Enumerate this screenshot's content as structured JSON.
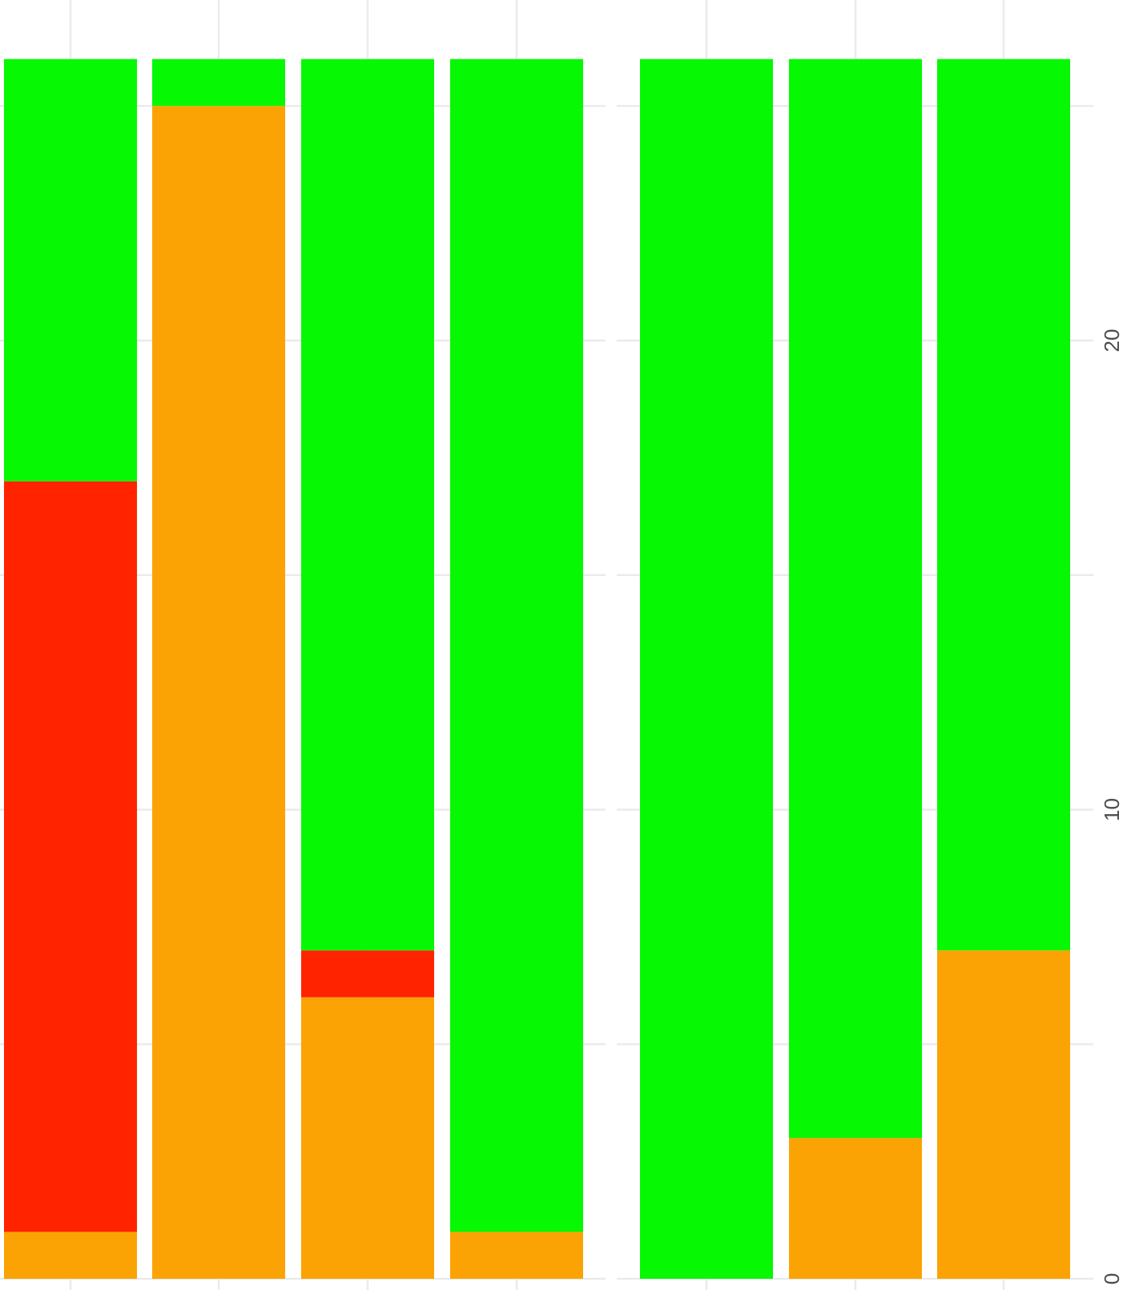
{
  "chart_data": {
    "type": "bar",
    "stacked": true,
    "orientation": "vertical",
    "panels": 2,
    "grid": true,
    "legend": "none",
    "x_tick_labels": [],
    "y_axis": {
      "position": "right",
      "ylim": [
        0,
        26
      ],
      "major_ticks": [
        0,
        10,
        20
      ],
      "minor_ticks": [
        5,
        15,
        25
      ],
      "tick_labels": [
        "0",
        "10",
        "20"
      ],
      "tick_label_rotation": -90
    },
    "colors": {
      "orange": "#FBA304",
      "red": "#FF2300",
      "green": "#07F803",
      "grid": "#EBEBEB"
    },
    "bars": [
      {
        "panel": 1,
        "segments": [
          {
            "color": "orange",
            "value": 1
          },
          {
            "color": "red",
            "value": 16
          },
          {
            "color": "green",
            "value": 9
          }
        ]
      },
      {
        "panel": 1,
        "segments": [
          {
            "color": "orange",
            "value": 25
          },
          {
            "color": "green",
            "value": 1
          }
        ]
      },
      {
        "panel": 1,
        "segments": [
          {
            "color": "orange",
            "value": 6
          },
          {
            "color": "red",
            "value": 1
          },
          {
            "color": "green",
            "value": 19
          }
        ]
      },
      {
        "panel": 1,
        "segments": [
          {
            "color": "orange",
            "value": 1
          },
          {
            "color": "green",
            "value": 25
          }
        ]
      },
      {
        "panel": 2,
        "segments": [
          {
            "color": "green",
            "value": 26
          }
        ]
      },
      {
        "panel": 2,
        "segments": [
          {
            "color": "orange",
            "value": 3
          },
          {
            "color": "green",
            "value": 23
          }
        ]
      },
      {
        "panel": 2,
        "segments": [
          {
            "color": "orange",
            "value": 7
          },
          {
            "color": "green",
            "value": 19
          }
        ]
      }
    ]
  }
}
